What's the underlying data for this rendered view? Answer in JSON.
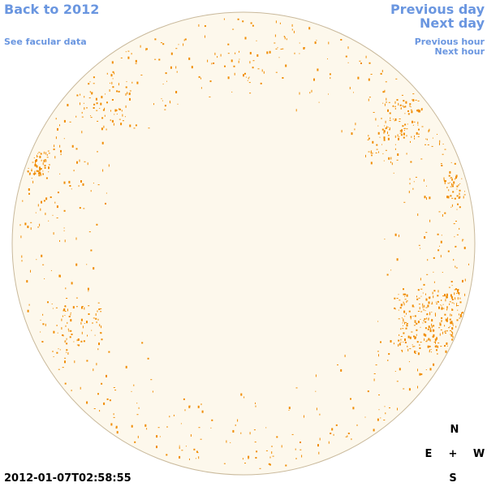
{
  "links": {
    "back": "Back to 2012",
    "facular": "See facular data",
    "previous_day": "Previous day",
    "next_day": "Next day",
    "previous_hour": "Previous hour",
    "next_hour": "Next hour"
  },
  "timestamp": "2012-01-07T02:58:55",
  "compass": {
    "north": "N",
    "east": "E",
    "center": "+",
    "west": "W",
    "south": "S"
  }
}
